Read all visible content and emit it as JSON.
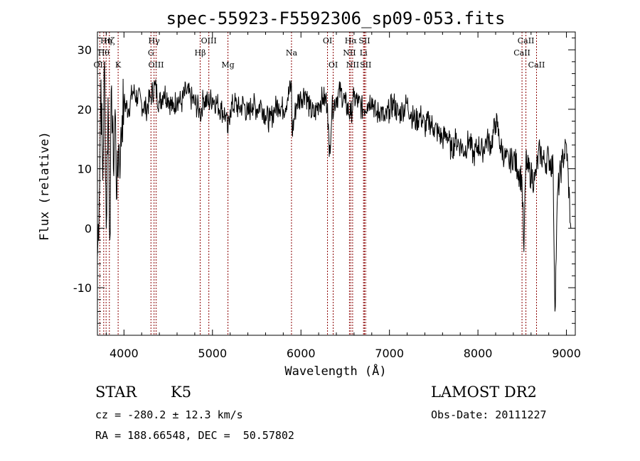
{
  "chart_data": {
    "type": "line",
    "title": "spec-55923-F5592306_sp09-053.fits",
    "xlabel": "Wavelength (Å)",
    "ylabel": "Flux (relative)",
    "xlim": [
      3700,
      9100
    ],
    "ylim": [
      -18,
      33
    ],
    "xticks": [
      4000,
      5000,
      6000,
      7000,
      8000,
      9000
    ],
    "yticks": [
      -10,
      0,
      10,
      20,
      30
    ],
    "series": [
      {
        "name": "flux",
        "x": [
          3700,
          3720,
          3740,
          3760,
          3780,
          3800,
          3820,
          3840,
          3860,
          3880,
          3900,
          3920,
          3940,
          3960,
          3980,
          4000,
          4050,
          4100,
          4150,
          4200,
          4250,
          4300,
          4350,
          4400,
          4450,
          4500,
          4550,
          4600,
          4650,
          4700,
          4750,
          4800,
          4850,
          4861,
          4900,
          4950,
          5000,
          5050,
          5100,
          5150,
          5175,
          5200,
          5250,
          5300,
          5350,
          5400,
          5450,
          5500,
          5550,
          5600,
          5650,
          5700,
          5750,
          5800,
          5850,
          5893,
          5900,
          5950,
          6000,
          6050,
          6100,
          6150,
          6200,
          6250,
          6300,
          6320,
          6350,
          6400,
          6450,
          6500,
          6563,
          6600,
          6650,
          6700,
          6750,
          6800,
          6850,
          6900,
          6950,
          7000,
          7050,
          7100,
          7150,
          7200,
          7250,
          7300,
          7350,
          7400,
          7450,
          7500,
          7550,
          7600,
          7650,
          7700,
          7750,
          7800,
          7850,
          7900,
          7950,
          8000,
          8050,
          8100,
          8150,
          8200,
          8220,
          8250,
          8300,
          8350,
          8400,
          8450,
          8498,
          8520,
          8542,
          8560,
          8600,
          8640,
          8662,
          8700,
          8750,
          8800,
          8850,
          8870,
          8900,
          8950,
          9000,
          9050
        ],
        "y": [
          -5,
          5,
          25,
          8,
          28,
          0,
          22,
          -2,
          24,
          10,
          20,
          5,
          14,
          12,
          19,
          21,
          20,
          23,
          22,
          21,
          20,
          22,
          24,
          21,
          23,
          22,
          20,
          22,
          21,
          23,
          22,
          21,
          20,
          19,
          22,
          21,
          22,
          21,
          20,
          19,
          16,
          20,
          21,
          20,
          21,
          19,
          21,
          20,
          21,
          19,
          18,
          20,
          21,
          20,
          22,
          24,
          16,
          21,
          22,
          23,
          20,
          19,
          21,
          22,
          21,
          12,
          20,
          22,
          23,
          21,
          19,
          22,
          21,
          20,
          21,
          22,
          19,
          20,
          18,
          20,
          21,
          19,
          20,
          21,
          19,
          18,
          19,
          17,
          18,
          17,
          16,
          15,
          16,
          13,
          15,
          14,
          13,
          15,
          12,
          14,
          13,
          15,
          14,
          18,
          17,
          14,
          12,
          11,
          12,
          10,
          8,
          -4,
          12,
          10,
          9,
          8,
          10,
          13,
          11,
          12,
          10,
          -14,
          6,
          11,
          14,
          0
        ]
      }
    ],
    "lines": [
      {
        "x": 3727,
        "label": "OII",
        "row": 3
      },
      {
        "x": 3771,
        "label": "Hθ",
        "row": 2
      },
      {
        "x": 3798,
        "label": "Hη",
        "row": 1
      },
      {
        "x": 3835,
        "label": "Hζ",
        "row": 1
      },
      {
        "x": 3934,
        "label": "K",
        "row": 3
      },
      {
        "x": 4305,
        "label": "G",
        "row": 2
      },
      {
        "x": 4340,
        "label": "Hγ",
        "row": 1
      },
      {
        "x": 4363,
        "label": "OIII",
        "row": 3
      },
      {
        "x": 4861,
        "label": "Hβ",
        "row": 2
      },
      {
        "x": 4959,
        "label": "OIII",
        "row": 1
      },
      {
        "x": 5175,
        "label": "Mg",
        "row": 3
      },
      {
        "x": 5893,
        "label": "Na",
        "row": 2
      },
      {
        "x": 6300,
        "label": "OI",
        "row": 1
      },
      {
        "x": 6364,
        "label": "OI",
        "row": 3
      },
      {
        "x": 6548,
        "label": "NII",
        "row": 2
      },
      {
        "x": 6563,
        "label": "Hα",
        "row": 1
      },
      {
        "x": 6584,
        "label": "NII",
        "row": 3
      },
      {
        "x": 6707,
        "label": "Li",
        "row": 2
      },
      {
        "x": 6717,
        "label": "SII",
        "row": 1
      },
      {
        "x": 6731,
        "label": "SII",
        "row": 3
      },
      {
        "x": 8498,
        "label": "CaII",
        "row": 2
      },
      {
        "x": 8542,
        "label": "CaII",
        "row": 1
      },
      {
        "x": 8662,
        "label": "CaII",
        "row": 3
      }
    ],
    "line_color": "#8b0000",
    "grid": false,
    "legend": "none"
  },
  "info": {
    "object_class": "STAR",
    "subclass": "K5",
    "survey": "LAMOST DR2",
    "redshift": "cz = -280.2 ± 12.3 km/s",
    "obs_date": "Obs-Date: 20111227",
    "coords": "RA = 188.66548, DEC =  50.57802"
  }
}
